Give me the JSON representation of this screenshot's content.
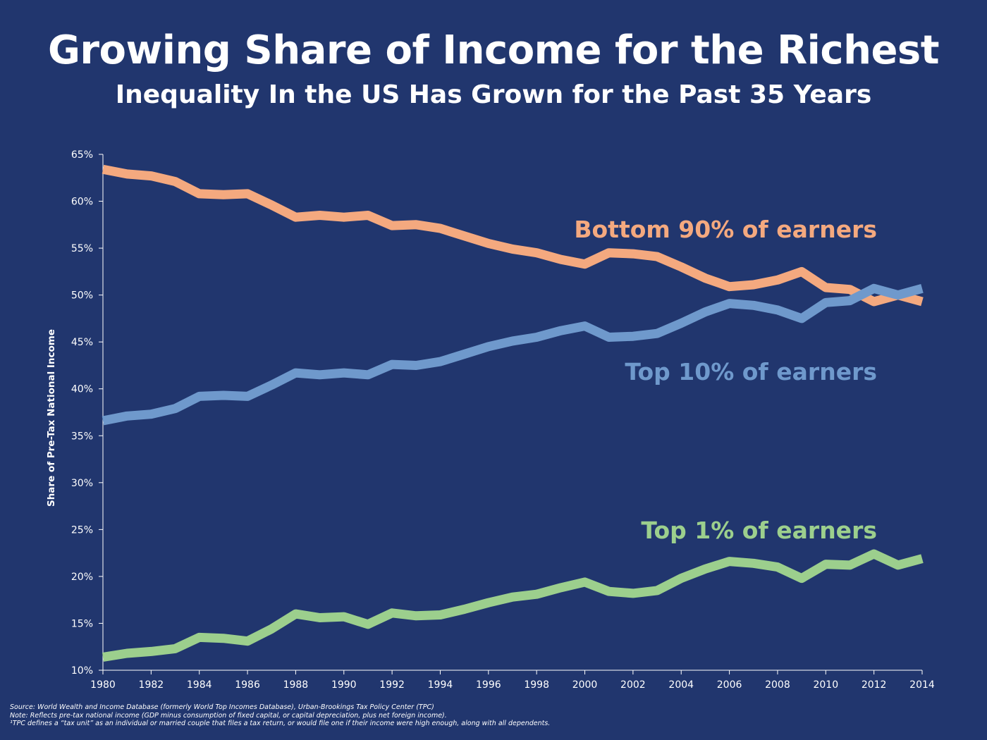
{
  "title": "Growing Share of Income for the Richest",
  "subtitle": "Inequality In the US Has Grown for the Past 35 Years",
  "footnotes": {
    "source": "Source: World Wealth and Income Database (formerly World Top Incomes Database), Urban-Brookings Tax Policy Center (TPC)",
    "note": "Note: Reflects pre-tax national income (GDP minus consumption of fixed capital, or capital depreciation, plus net foreign income).",
    "tpc": "¹TPC defines a “tax unit” as an individual or married couple that files a tax return, or would file one if their income were high enough, along with all dependents."
  },
  "colors": {
    "background": "#21366e",
    "bottom90": "#f4a97f",
    "top10": "#6f99cc",
    "top1": "#9ccf8d",
    "axis": "#ffffff"
  },
  "chart_data": {
    "type": "line",
    "ylabel": "Share of Pre-Tax National Income",
    "xlabel": "",
    "ylim": [
      10,
      65
    ],
    "xlim": [
      1980,
      2014
    ],
    "grid": false,
    "y_ticks": [
      "10%",
      "15%",
      "20%",
      "25%",
      "30%",
      "35%",
      "40%",
      "45%",
      "50%",
      "55%",
      "60%",
      "65%"
    ],
    "x_ticks": [
      "1980",
      "1982",
      "1984",
      "1986",
      "1988",
      "1990",
      "1992",
      "1994",
      "1996",
      "1998",
      "2000",
      "2002",
      "2004",
      "2006",
      "2008",
      "2010",
      "2012",
      "2014"
    ],
    "x": [
      1980,
      1981,
      1982,
      1983,
      1984,
      1985,
      1986,
      1987,
      1988,
      1989,
      1990,
      1991,
      1992,
      1993,
      1994,
      1995,
      1996,
      1997,
      1998,
      1999,
      2000,
      2001,
      2002,
      2003,
      2004,
      2005,
      2006,
      2007,
      2008,
      2009,
      2010,
      2011,
      2012,
      2013,
      2014
    ],
    "series": [
      {
        "name": "Bottom 90% of earners",
        "color": "#f4a97f",
        "values": [
          63.4,
          62.9,
          62.7,
          62.1,
          60.8,
          60.7,
          60.8,
          59.6,
          58.3,
          58.5,
          58.3,
          58.5,
          57.4,
          57.5,
          57.1,
          56.3,
          55.5,
          54.9,
          54.5,
          53.8,
          53.3,
          54.5,
          54.4,
          54.1,
          53.0,
          51.8,
          50.9,
          51.1,
          51.6,
          52.5,
          50.8,
          50.6,
          49.3,
          50.0,
          49.3
        ]
      },
      {
        "name": "Top 10% of earners",
        "color": "#6f99cc",
        "values": [
          36.6,
          37.1,
          37.3,
          37.9,
          39.2,
          39.3,
          39.2,
          40.4,
          41.7,
          41.5,
          41.7,
          41.5,
          42.6,
          42.5,
          42.9,
          43.7,
          44.5,
          45.1,
          45.5,
          46.2,
          46.7,
          45.5,
          45.6,
          45.9,
          47.0,
          48.2,
          49.1,
          48.9,
          48.4,
          47.5,
          49.2,
          49.4,
          50.7,
          50.0,
          50.7
        ]
      },
      {
        "name": "Top 1% of earners",
        "color": "#9ccf8d",
        "values": [
          11.4,
          11.8,
          12.0,
          12.3,
          13.5,
          13.4,
          13.1,
          14.4,
          16.0,
          15.6,
          15.7,
          14.9,
          16.1,
          15.8,
          15.9,
          16.5,
          17.2,
          17.8,
          18.1,
          18.8,
          19.4,
          18.4,
          18.2,
          18.5,
          19.8,
          20.8,
          21.6,
          21.4,
          21.0,
          19.8,
          21.3,
          21.2,
          22.4,
          21.2,
          21.9
        ]
      }
    ]
  }
}
